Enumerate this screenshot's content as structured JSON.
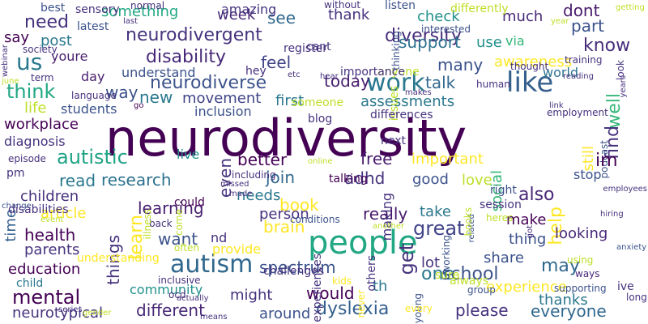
{
  "word_cloud": {
    "words": [
      {
        "text": "neurodiversity",
        "color": "#440154"
      },
      {
        "text": "people",
        "color": "#22a884"
      },
      {
        "text": "autism",
        "color": "#31688e"
      },
      {
        "text": "like",
        "color": "#35608d"
      },
      {
        "text": "work",
        "color": "#2a788e"
      },
      {
        "text": "neurodivergent",
        "color": "#46337e"
      },
      {
        "text": "disability",
        "color": "#482878"
      },
      {
        "text": "autistic",
        "color": "#20a386"
      },
      {
        "text": "diversity",
        "color": "#472d7b"
      },
      {
        "text": "neurodiverse",
        "color": "#3b528b"
      },
      {
        "text": "us",
        "color": "#2a788e"
      },
      {
        "text": "need",
        "color": "#46327e"
      },
      {
        "text": "something",
        "color": "#22a884"
      },
      {
        "text": "think",
        "color": "#22a884"
      },
      {
        "text": "today",
        "color": "#481f70"
      },
      {
        "text": "feel",
        "color": "#414487"
      },
      {
        "text": "support",
        "color": "#2c728e"
      },
      {
        "text": "know",
        "color": "#472c7a"
      },
      {
        "text": "movement",
        "color": "#414487"
      },
      {
        "text": "way",
        "color": "#3b528b"
      },
      {
        "text": "assessments",
        "color": "#2a788e"
      },
      {
        "text": "workplace",
        "color": "#440154"
      },
      {
        "text": "diagnosis",
        "color": "#46327e"
      },
      {
        "text": "students",
        "color": "#3b528b"
      },
      {
        "text": "new",
        "color": "#2a788e"
      },
      {
        "text": "inclusion",
        "color": "#3b528b"
      },
      {
        "text": "first",
        "color": "#2a788e"
      },
      {
        "text": "many",
        "color": "#3b528b"
      },
      {
        "text": "talk",
        "color": "#31688e"
      },
      {
        "text": "awareness",
        "color": "#fde725"
      },
      {
        "text": "check",
        "color": "#21918c"
      },
      {
        "text": "much",
        "color": "#482878"
      },
      {
        "text": "part",
        "color": "#3b528b"
      },
      {
        "text": "dont",
        "color": "#481a6c"
      },
      {
        "text": "see",
        "color": "#31688e"
      },
      {
        "text": "thank",
        "color": "#46327e"
      },
      {
        "text": "week",
        "color": "#482878"
      },
      {
        "text": "say",
        "color": "#440154"
      },
      {
        "text": "post",
        "color": "#2a788e"
      },
      {
        "text": "youre",
        "color": "#481f70"
      },
      {
        "text": "day",
        "color": "#481f70"
      },
      {
        "text": "understand",
        "color": "#3b528b"
      },
      {
        "text": "world",
        "color": "#2c728e"
      },
      {
        "text": "via",
        "color": "#35b779"
      },
      {
        "text": "use",
        "color": "#21918c"
      },
      {
        "text": "life",
        "color": "#bddf26"
      },
      {
        "text": "well",
        "color": "#35b779"
      },
      {
        "text": "find",
        "color": "#46337e"
      },
      {
        "text": "still",
        "color": "#fde725"
      },
      {
        "text": "podcast",
        "color": "#3b528b"
      },
      {
        "text": "read",
        "color": "#2a788e"
      },
      {
        "text": "free",
        "color": "#481a6c"
      },
      {
        "text": "join",
        "color": "#31688e"
      },
      {
        "text": "better",
        "color": "#440154"
      },
      {
        "text": "research",
        "color": "#2c728e"
      },
      {
        "text": "live",
        "color": "#21918c"
      },
      {
        "text": "even",
        "color": "#46327e"
      },
      {
        "text": "important",
        "color": "#fde725"
      },
      {
        "text": "im",
        "color": "#440154"
      },
      {
        "text": "adhd",
        "color": "#46337e"
      },
      {
        "text": "love",
        "color": "#bddf26"
      },
      {
        "text": "good",
        "color": "#3b528b"
      },
      {
        "text": "also",
        "color": "#482878"
      },
      {
        "text": "social",
        "color": "#35b779"
      },
      {
        "text": "help",
        "color": "#fde725"
      },
      {
        "text": "children",
        "color": "#46327e"
      },
      {
        "text": "article",
        "color": "#fde725"
      },
      {
        "text": "learning",
        "color": "#481f70"
      },
      {
        "text": "needs",
        "color": "#2a788e"
      },
      {
        "text": "book",
        "color": "#fde725"
      },
      {
        "text": "really",
        "color": "#481a6c"
      },
      {
        "text": "person",
        "color": "#46327e"
      },
      {
        "text": "take",
        "color": "#2a788e"
      },
      {
        "text": "make",
        "color": "#440154"
      },
      {
        "text": "stop",
        "color": "#3b528b"
      },
      {
        "text": "time",
        "color": "#35608d"
      },
      {
        "text": "health",
        "color": "#440154"
      },
      {
        "text": "learn",
        "color": "#fde725"
      },
      {
        "text": "brain",
        "color": "#fde725"
      },
      {
        "text": "want",
        "color": "#3b528b"
      },
      {
        "text": "nd",
        "color": "#46327e"
      },
      {
        "text": "great",
        "color": "#414487"
      },
      {
        "text": "thing",
        "color": "#3b528b"
      },
      {
        "text": "looking",
        "color": "#482878"
      },
      {
        "text": "parents",
        "color": "#46327e"
      },
      {
        "text": "provide",
        "color": "#fde725"
      },
      {
        "text": "get",
        "color": "#46327e"
      },
      {
        "text": "lot",
        "color": "#46327e"
      },
      {
        "text": "share",
        "color": "#3b528b"
      },
      {
        "text": "may",
        "color": "#31688e"
      },
      {
        "text": "education",
        "color": "#440154"
      },
      {
        "text": "things",
        "color": "#46337e"
      },
      {
        "text": "one",
        "color": "#2a788e"
      },
      {
        "text": "school",
        "color": "#3b528b"
      },
      {
        "text": "community",
        "color": "#21918c"
      },
      {
        "text": "spectrum",
        "color": "#3b528b"
      },
      {
        "text": "might",
        "color": "#46327e"
      },
      {
        "text": "experience",
        "color": "#fde725"
      },
      {
        "text": "mental",
        "color": "#440154"
      },
      {
        "text": "would",
        "color": "#440154"
      },
      {
        "text": "th",
        "color": "#2a788e"
      },
      {
        "text": "thanks",
        "color": "#2a788e"
      },
      {
        "text": "different",
        "color": "#482878"
      },
      {
        "text": "around",
        "color": "#3b528b"
      },
      {
        "text": "dyslexia",
        "color": "#35608d"
      },
      {
        "text": "please",
        "color": "#46327e"
      },
      {
        "text": "everyone",
        "color": "#31688e"
      },
      {
        "text": "pm",
        "color": "#46327e"
      },
      {
        "text": "could",
        "color": "#440154"
      },
      {
        "text": "including",
        "color": "#46327e"
      },
      {
        "text": "talking",
        "color": "#440154"
      },
      {
        "text": "next",
        "color": "#46327e"
      },
      {
        "text": "right",
        "color": "#3b528b"
      },
      {
        "text": "conditions",
        "color": "#3b528b"
      },
      {
        "text": "challenges",
        "color": "#46327e"
      },
      {
        "text": "session",
        "color": "#46327e"
      },
      {
        "text": "experiences",
        "color": "#46327e"
      },
      {
        "text": "group",
        "color": "#3b528b"
      },
      {
        "text": "ways",
        "color": "#482878"
      },
      {
        "text": "always",
        "color": "#bddf26"
      },
      {
        "text": "supporting",
        "color": "#3b528b"
      },
      {
        "text": "young",
        "color": "#3b528b"
      },
      {
        "text": "never",
        "color": "#fde725"
      },
      {
        "text": "every",
        "color": "#fde725"
      },
      {
        "text": "others",
        "color": "#46327e"
      },
      {
        "text": "ocd",
        "color": "#46327e"
      },
      {
        "text": "kids",
        "color": "#fde725"
      },
      {
        "text": "understanding",
        "color": "#fde725"
      },
      {
        "text": "child",
        "color": "#2a788e"
      },
      {
        "text": "neurotypical",
        "color": "#46327e"
      },
      {
        "text": "inclusive",
        "color": "#46327e"
      },
      {
        "text": "amazing",
        "color": "#46327e"
      },
      {
        "text": "best",
        "color": "#3b528b"
      },
      {
        "text": "sensory",
        "color": "#46327e"
      },
      {
        "text": "normal",
        "color": "#46327e"
      },
      {
        "text": "without",
        "color": "#46327e"
      },
      {
        "text": "listen",
        "color": "#3b528b"
      },
      {
        "text": "differently",
        "color": "#bddf26"
      },
      {
        "text": "interested",
        "color": "#3b528b"
      },
      {
        "text": "last",
        "color": "#46327e"
      },
      {
        "text": "latest",
        "color": "#3b528b"
      },
      {
        "text": "register",
        "color": "#46327e"
      },
      {
        "text": "cant",
        "color": "#46327e"
      },
      {
        "text": "thinking",
        "color": "#3b528b"
      },
      {
        "text": "anyone",
        "color": "#bddf26"
      },
      {
        "text": "importance",
        "color": "#46327e"
      },
      {
        "text": "thought",
        "color": "#46327e"
      },
      {
        "text": "reading",
        "color": "#46327e"
      },
      {
        "text": "years",
        "color": "#46327e"
      },
      {
        "text": "human",
        "color": "#46327e"
      },
      {
        "text": "issues",
        "color": "#bddf26"
      },
      {
        "text": "employment",
        "color": "#46327e"
      },
      {
        "text": "link",
        "color": "#46327e"
      },
      {
        "text": "look",
        "color": "#46327e"
      },
      {
        "text": "training",
        "color": "#46327e"
      },
      {
        "text": "blog",
        "color": "#46327e"
      },
      {
        "text": "someone",
        "color": "#bddf26"
      },
      {
        "text": "differences",
        "color": "#46327e"
      },
      {
        "text": "hey",
        "color": "#46327e"
      },
      {
        "text": "etc",
        "color": "#46327e"
      },
      {
        "text": "hear",
        "color": "#46327e"
      },
      {
        "text": "term",
        "color": "#46327e"
      },
      {
        "text": "language",
        "color": "#46327e"
      },
      {
        "text": "june",
        "color": "#bddf26"
      },
      {
        "text": "webinar",
        "color": "#46327e"
      },
      {
        "text": "society",
        "color": "#46327e"
      },
      {
        "text": "go",
        "color": "#440154"
      },
      {
        "text": "episode",
        "color": "#46327e"
      },
      {
        "text": "change",
        "color": "#3b528b"
      },
      {
        "text": "disabilities",
        "color": "#46327e"
      },
      {
        "text": "event",
        "color": "#bddf26"
      },
      {
        "text": "back",
        "color": "#46327e"
      },
      {
        "text": "often",
        "color": "#bddf26"
      },
      {
        "text": "illness",
        "color": "#bddf26"
      },
      {
        "text": "come",
        "color": "#bddf26"
      },
      {
        "text": "actually",
        "color": "#46327e"
      },
      {
        "text": "series",
        "color": "#46327e"
      },
      {
        "text": "means",
        "color": "#46327e"
      },
      {
        "text": "made",
        "color": "#46327e"
      },
      {
        "text": "missed",
        "color": "#46327e"
      },
      {
        "text": "online",
        "color": "#bddf26"
      },
      {
        "text": "making",
        "color": "#46327e"
      },
      {
        "text": "another",
        "color": "#bddf26"
      },
      {
        "text": "working",
        "color": "#3b528b"
      },
      {
        "text": "sure",
        "color": "#bddf26"
      },
      {
        "text": "related",
        "color": "#3b528b"
      },
      {
        "text": "heres",
        "color": "#bddf26"
      },
      {
        "text": "books",
        "color": "#bddf26"
      },
      {
        "text": "got",
        "color": "#46327e"
      },
      {
        "text": "hiring",
        "color": "#46327e"
      },
      {
        "text": "anxiety",
        "color": "#3b528b"
      },
      {
        "text": "ive",
        "color": "#46327e"
      },
      {
        "text": "long",
        "color": "#46327e"
      },
      {
        "text": "employees",
        "color": "#46327e"
      },
      {
        "text": "year",
        "color": "#bddf26"
      },
      {
        "text": "getting",
        "color": "#bddf26"
      },
      {
        "text": "makes",
        "color": "#46327e"
      },
      {
        "text": "using",
        "color": "#bddf26"
      },
      {
        "text": "gender",
        "color": "#bddf26"
      }
    ]
  }
}
